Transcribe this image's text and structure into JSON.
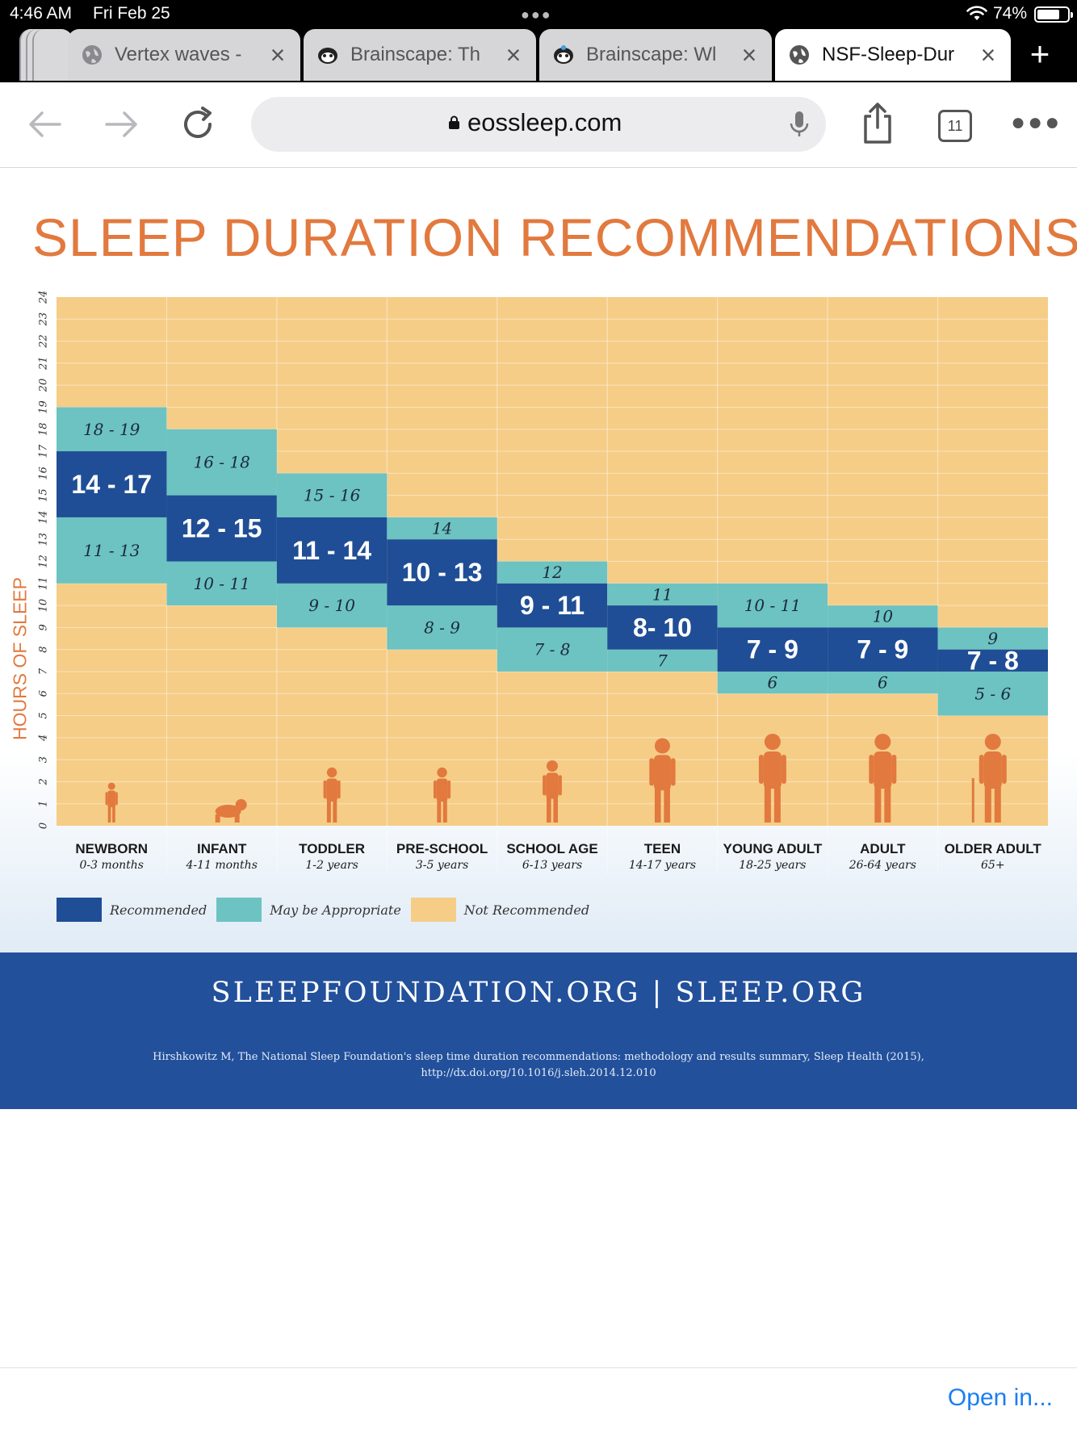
{
  "status_bar": {
    "time": "4:46 AM",
    "date": "Fri Feb 25",
    "battery_pct": "74%",
    "battery_level": 0.74
  },
  "tabs": [
    {
      "title": "Vertex waves -",
      "icon": "globe-icon",
      "active": false
    },
    {
      "title": "Brainscape: Th",
      "icon": "brainscape-icon",
      "active": false
    },
    {
      "title": "Brainscape: Wl",
      "icon": "brainscape-icon",
      "active": false
    },
    {
      "title": "NSF-Sleep-Dur",
      "icon": "globe-icon",
      "active": true
    }
  ],
  "toolbar": {
    "url": "eossleep.com",
    "tab_count": "11"
  },
  "bottom_bar": {
    "open_in_label": "Open in..."
  },
  "chart_data": {
    "type": "table",
    "title": "SLEEP DURATION RECOMMENDATIONS",
    "ylabel": "HOURS OF SLEEP",
    "ylim": [
      0,
      24
    ],
    "yticks": [
      "0",
      "1",
      "2",
      "3",
      "4",
      "5",
      "6",
      "7",
      "8",
      "9",
      "10",
      "11",
      "12",
      "13",
      "14",
      "15",
      "16",
      "17",
      "18",
      "19",
      "20",
      "21",
      "22",
      "23",
      "24"
    ],
    "colors": {
      "recommended": "#1f4e96",
      "may_be_appropriate": "#6cc3c2",
      "not_recommended": "#f5cd87"
    },
    "groups": [
      {
        "name": "NEWBORN",
        "age": "0-3 months",
        "recommended": [
          14,
          17
        ],
        "recommended_label": "14 - 17",
        "upper": [
          17,
          19
        ],
        "upper_label": "18 - 19",
        "lower": [
          11,
          14
        ],
        "lower_label": "11 - 13"
      },
      {
        "name": "INFANT",
        "age": "4-11 months",
        "recommended": [
          12,
          15
        ],
        "recommended_label": "12 - 15",
        "upper": [
          15,
          18
        ],
        "upper_label": "16 - 18",
        "lower": [
          10,
          12
        ],
        "lower_label": "10 - 11"
      },
      {
        "name": "TODDLER",
        "age": "1-2 years",
        "recommended": [
          11,
          14
        ],
        "recommended_label": "11 - 14",
        "upper": [
          14,
          16
        ],
        "upper_label": "15 - 16",
        "lower": [
          9,
          11
        ],
        "lower_label": "9 - 10"
      },
      {
        "name": "PRE-SCHOOL",
        "age": "3-5 years",
        "recommended": [
          10,
          13
        ],
        "recommended_label": "10 - 13",
        "upper": [
          13,
          14
        ],
        "upper_label": "14",
        "lower": [
          8,
          10
        ],
        "lower_label": "8 - 9"
      },
      {
        "name": "SCHOOL AGE",
        "age": "6-13 years",
        "recommended": [
          9,
          11
        ],
        "recommended_label": "9 - 11",
        "upper": [
          11,
          12
        ],
        "upper_label": "12",
        "lower": [
          7,
          9
        ],
        "lower_label": "7 - 8"
      },
      {
        "name": "TEEN",
        "age": "14-17 years",
        "recommended": [
          8,
          10
        ],
        "recommended_label": "8- 10",
        "upper": [
          10,
          11
        ],
        "upper_label": "11",
        "lower": [
          7,
          8
        ],
        "lower_label": "7"
      },
      {
        "name": "YOUNG ADULT",
        "age": "18-25 years",
        "recommended": [
          7,
          9
        ],
        "recommended_label": "7 - 9",
        "upper": [
          9,
          11
        ],
        "upper_label": "10 - 11",
        "lower": [
          6,
          7
        ],
        "lower_label": "6"
      },
      {
        "name": "ADULT",
        "age": "26-64 years",
        "recommended": [
          7,
          9
        ],
        "recommended_label": "7 - 9",
        "upper": [
          9,
          10
        ],
        "upper_label": "10",
        "lower": [
          6,
          7
        ],
        "lower_label": "6"
      },
      {
        "name": "OLDER ADULT",
        "age": "65+",
        "recommended": [
          7,
          8
        ],
        "recommended_label": "7 - 8",
        "upper": [
          8,
          9
        ],
        "upper_label": "9",
        "lower": [
          5,
          7
        ],
        "lower_label": "5 - 6"
      }
    ],
    "legend": [
      {
        "label": "Recommended",
        "key": "recommended"
      },
      {
        "label": "May be Appropriate",
        "key": "may_be_appropriate"
      },
      {
        "label": "Not Recommended",
        "key": "not_recommended"
      }
    ]
  },
  "footer": {
    "links": "SLEEPFOUNDATION.ORG  |  SLEEP.ORG",
    "citation_line1": "Hirshkowitz M, The National Sleep Foundation's sleep time duration recommendations: methodology and results summary, Sleep Health (2015),",
    "citation_line2": "http://dx.doi.org/10.1016/j.sleh.2014.12.010"
  }
}
